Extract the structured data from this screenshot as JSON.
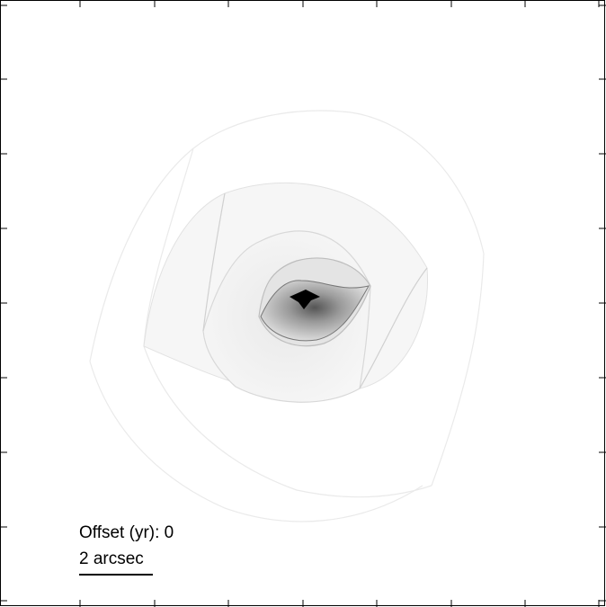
{
  "offset_label": "Offset (yr): 0",
  "scale_bar_label": "2 arcsec",
  "colors": {
    "background": "#ffffff",
    "frame": "#000000",
    "caustic_light": "#ededed",
    "caustic_mid": "#d6d6d6",
    "caustic_core": "#000000"
  }
}
